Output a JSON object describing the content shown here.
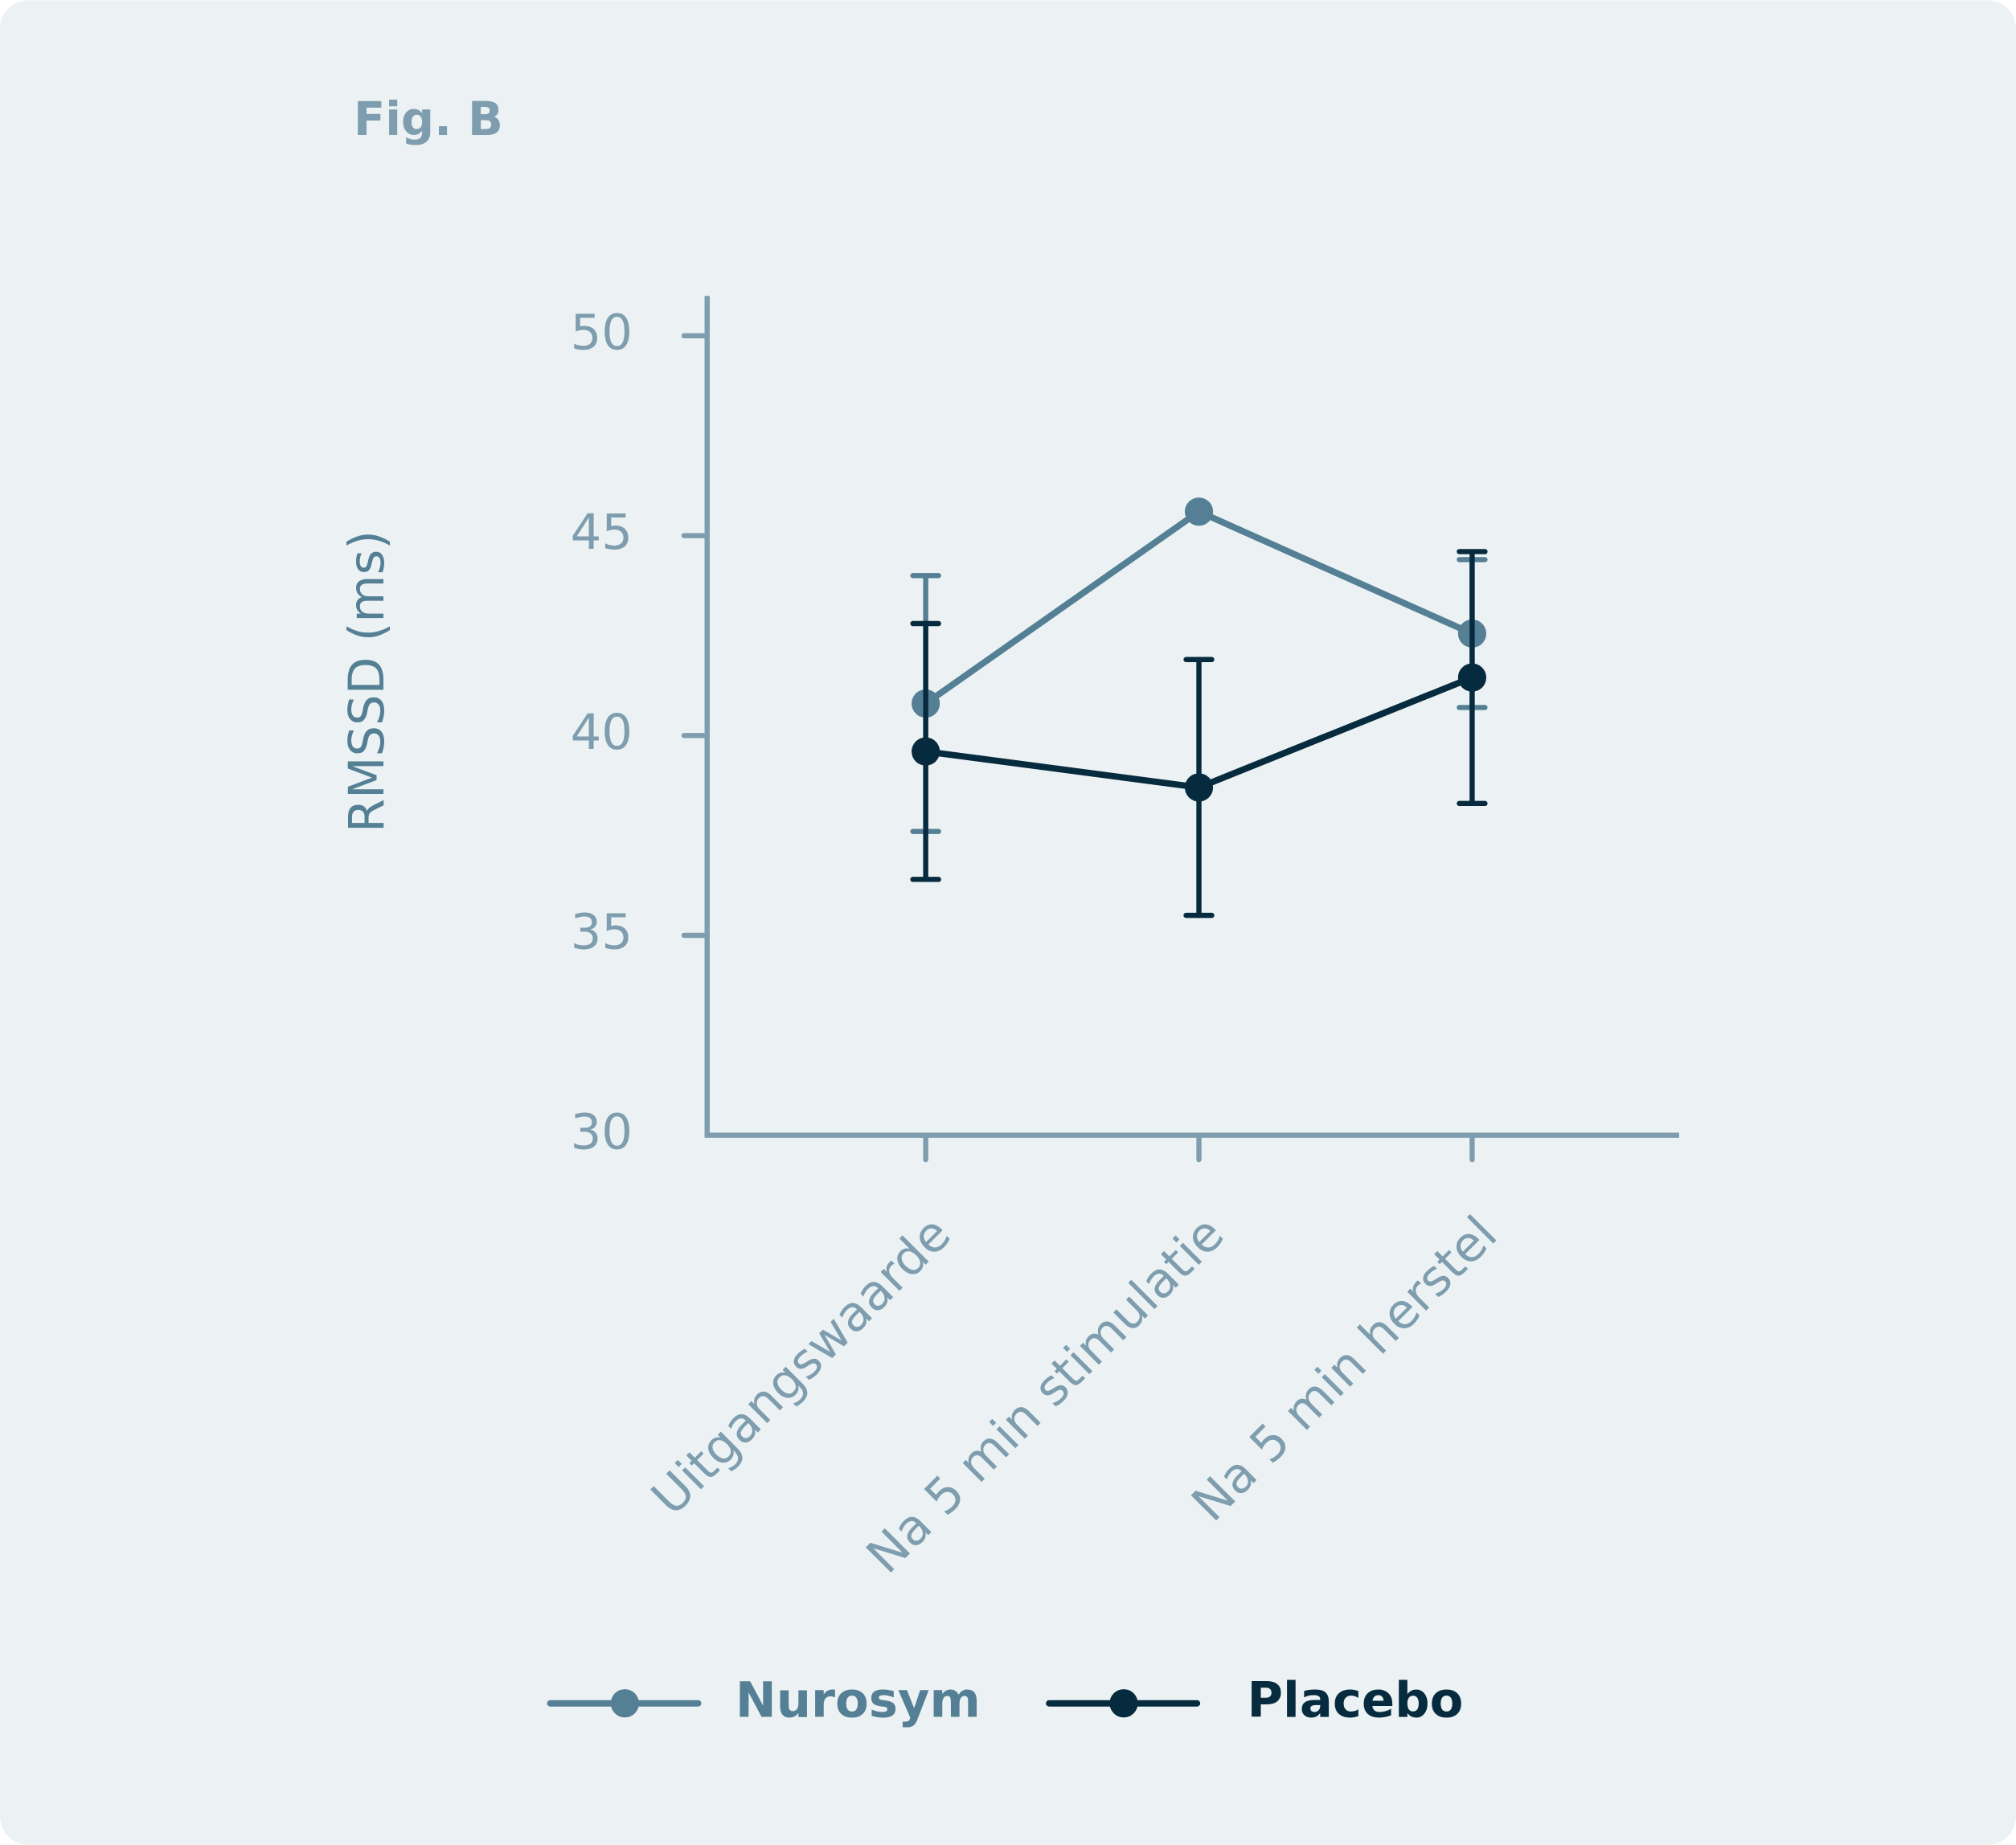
{
  "chart_data": {
    "type": "line",
    "title": "Fig. B",
    "y_label": "RMSSD (ms)",
    "categories": [
      "Uitgangswaarde",
      "Na 5 min stimulatie",
      "Na 5 min herstel"
    ],
    "ylim": [
      30,
      50
    ],
    "yticks": [
      30,
      35,
      40,
      45,
      50
    ],
    "series": [
      {
        "name": "Nurosym",
        "color": "#547f95",
        "values": [
          40.8,
          45.6,
          42.55
        ],
        "errors": [
          3.2,
          null,
          1.85
        ]
      },
      {
        "name": "Placebo",
        "color": "#062b3e",
        "values": [
          39.6,
          38.7,
          41.45
        ],
        "errors": [
          3.2,
          3.2,
          3.15
        ]
      }
    ]
  }
}
